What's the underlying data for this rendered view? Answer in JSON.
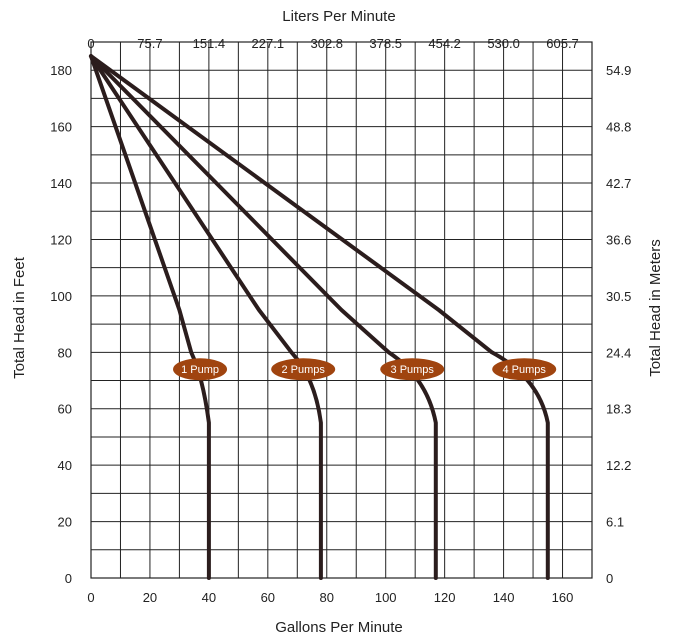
{
  "chart_data": {
    "type": "line",
    "x_title": "Gallons Per Minute",
    "x_top_title": "Liters Per Minute",
    "y_title": "Total Head in Feet",
    "y_right_title": "Total Head in Meters",
    "xlim": [
      0,
      170
    ],
    "ylim": [
      0,
      190
    ],
    "grid": true,
    "x_ticks": [
      0,
      20,
      40,
      60,
      80,
      100,
      120,
      140,
      160
    ],
    "x_top_ticks": [
      "0",
      "75.7",
      "151.4",
      "227.1",
      "302.8",
      "378.5",
      "454.2",
      "530.0",
      "605.7"
    ],
    "y_ticks": [
      0,
      20,
      40,
      60,
      80,
      100,
      120,
      140,
      160,
      180
    ],
    "y_right_ticks": [
      "0",
      "6.1",
      "12.2",
      "18.3",
      "24.4",
      "30.5",
      "36.6",
      "42.7",
      "48.8",
      "54.9"
    ],
    "line_color": "#2b1d1d",
    "label_color": "#a0440f",
    "series": [
      {
        "name": "1 Pump",
        "label_x": 37,
        "points": [
          [
            0,
            185
          ],
          [
            30,
            95
          ],
          [
            34,
            80
          ],
          [
            38,
            71
          ],
          [
            40,
            55
          ],
          [
            40,
            0
          ]
        ]
      },
      {
        "name": "2 Pumps",
        "label_x": 72,
        "points": [
          [
            0,
            185
          ],
          [
            57,
            95
          ],
          [
            68,
            80
          ],
          [
            76,
            71
          ],
          [
            78,
            55
          ],
          [
            78,
            0
          ]
        ]
      },
      {
        "name": "3 Pumps",
        "label_x": 109,
        "points": [
          [
            0,
            185
          ],
          [
            85,
            95
          ],
          [
            101,
            80
          ],
          [
            114,
            71
          ],
          [
            117,
            55
          ],
          [
            117,
            0
          ]
        ]
      },
      {
        "name": "4 Pumps",
        "label_x": 147,
        "points": [
          [
            0,
            185
          ],
          [
            118,
            95
          ],
          [
            136,
            80
          ],
          [
            152,
            71
          ],
          [
            155,
            55
          ],
          [
            155,
            0
          ]
        ]
      }
    ],
    "label_y": 74
  }
}
